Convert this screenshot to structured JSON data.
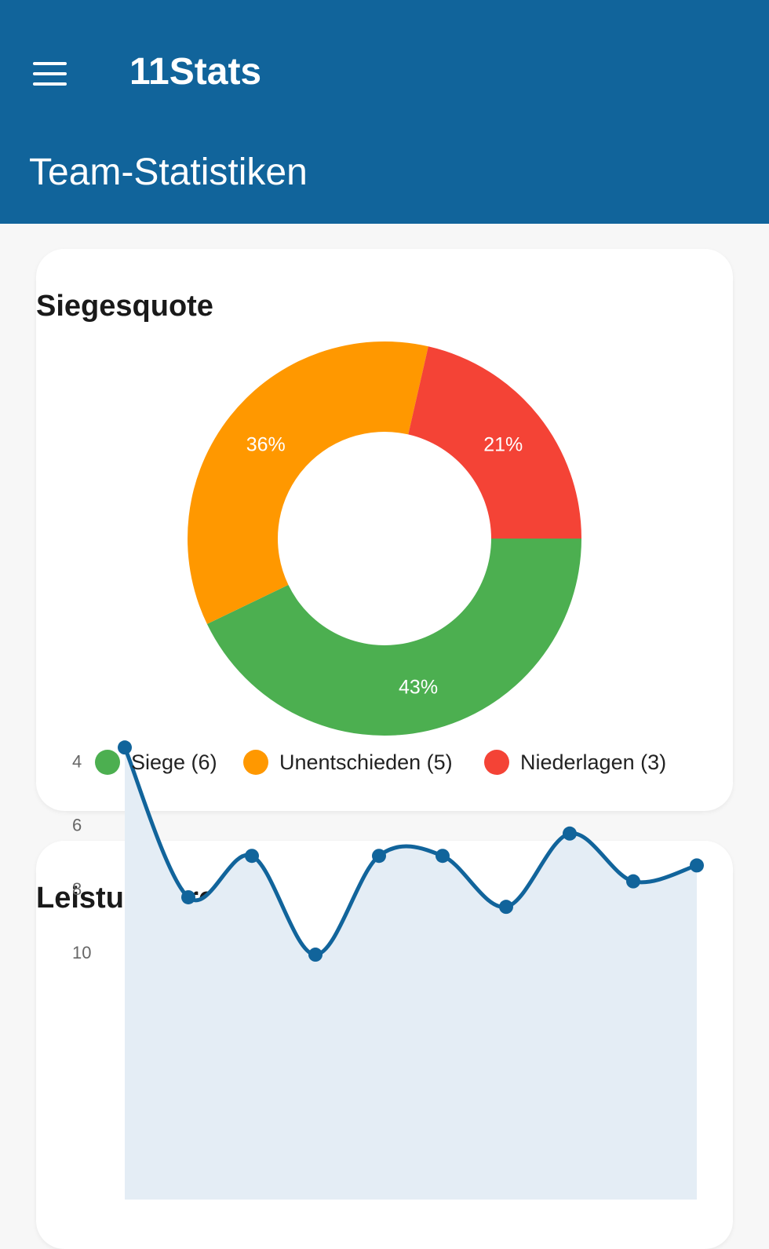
{
  "appbar": {
    "title": "11Stats",
    "page_title": "Team-Statistiken",
    "menu_icon": "menu-icon",
    "color": "#11649b"
  },
  "win_card": {
    "title": "Siegesquote",
    "chart_data": {
      "type": "pie",
      "donut": true,
      "slices": [
        {
          "label": "Siege (6)",
          "value": 6,
          "percent_label": "43%",
          "color": "#4caf50"
        },
        {
          "label": "Unentschieden (5)",
          "value": 5,
          "percent_label": "36%",
          "color": "#ff9800"
        },
        {
          "label": "Niederlagen (3)",
          "value": 3,
          "percent_label": "21%",
          "color": "#f44336"
        }
      ],
      "legend_position": "bottom"
    }
  },
  "trend_card": {
    "title": "Leistungstrend",
    "chart_data": {
      "type": "area",
      "x": [
        1,
        2,
        3,
        4,
        5,
        6,
        7,
        8,
        9,
        10
      ],
      "values": [
        3.6,
        8.3,
        7.0,
        10.1,
        7.0,
        7.0,
        8.6,
        6.3,
        7.8,
        7.3
      ],
      "yticks": [
        "10",
        "8",
        "6",
        "4"
      ],
      "line_color": "#11649b",
      "fill_color": "#e4edf5"
    }
  }
}
